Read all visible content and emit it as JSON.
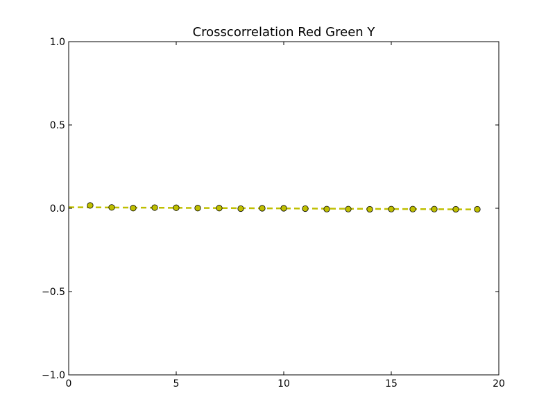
{
  "chart_data": {
    "type": "scatter",
    "title": "Crosscorrelation Red Green Y",
    "xlabel": "",
    "ylabel": "",
    "xlim": [
      0,
      20
    ],
    "ylim": [
      -1.0,
      1.0
    ],
    "x_ticks": [
      0,
      5,
      10,
      15,
      20
    ],
    "x_tick_labels": [
      "0",
      "5",
      "10",
      "15",
      "20"
    ],
    "y_ticks": [
      -1.0,
      -0.5,
      0.0,
      0.5,
      1.0
    ],
    "y_tick_labels": [
      "−1.0",
      "−0.5",
      "0.0",
      "0.5",
      "1.0"
    ],
    "grid": false,
    "legend": "none",
    "series": [
      {
        "marker": "circle",
        "marker_color": "#bfbf00",
        "marker_edge_color": "#000000",
        "values_x": [
          1,
          2,
          3,
          4,
          5,
          6,
          7,
          8,
          9,
          10,
          11,
          12,
          13,
          14,
          15,
          16,
          17,
          18,
          19
        ],
        "values_y": [
          0.017,
          0.005,
          0.001,
          0.004,
          0.003,
          0.001,
          0.001,
          -0.002,
          0.0,
          0.0,
          -0.002,
          -0.005,
          -0.005,
          -0.006,
          -0.005,
          -0.005,
          -0.005,
          -0.006,
          -0.006
        ]
      }
    ],
    "trend_line": {
      "style": "dashed",
      "color": "#bfbf00",
      "x": [
        0,
        19
      ],
      "y": [
        0.006,
        -0.007
      ]
    }
  }
}
